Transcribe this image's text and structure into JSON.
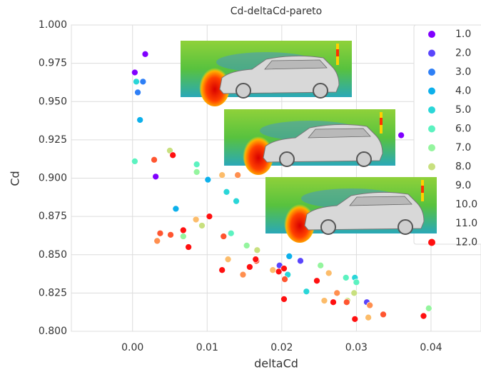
{
  "chart_data": {
    "type": "scatter",
    "title": "Cd-deltaCd-pareto",
    "x_label": "deltaCd",
    "y_label": "Cd",
    "xlim": [
      -0.0082,
      0.0467
    ],
    "ylim": [
      0.8,
      1.0
    ],
    "xticks": [
      {
        "value": 0,
        "label": "0.00"
      },
      {
        "value": 0.01,
        "label": "0.01"
      },
      {
        "value": 0.02,
        "label": "0.02"
      },
      {
        "value": 0.03,
        "label": "0.03"
      },
      {
        "value": 0.04,
        "label": "0.04"
      }
    ],
    "yticks": [
      {
        "value": 0.8,
        "label": "0.800"
      },
      {
        "value": 0.825,
        "label": "0.825"
      },
      {
        "value": 0.85,
        "label": "0.850"
      },
      {
        "value": 0.875,
        "label": "0.875"
      },
      {
        "value": 0.9,
        "label": "0.900"
      },
      {
        "value": 0.925,
        "label": "0.925"
      },
      {
        "value": 0.95,
        "label": "0.950"
      },
      {
        "value": 0.975,
        "label": "0.975"
      },
      {
        "value": 1.0,
        "label": "1.000"
      }
    ],
    "grid": true,
    "legend": "upper right",
    "series": [
      {
        "name": "1.0",
        "color": "#8000ff",
        "x": [
          0.0017,
          0.0003,
          0.0031,
          0.036
        ],
        "values": [
          0.981,
          0.969,
          0.901,
          0.928
        ]
      },
      {
        "name": "2.0",
        "color": "#5a45fc",
        "x": [
          0.0197,
          0.0225,
          0.0314
        ],
        "values": [
          0.843,
          0.846,
          0.819
        ]
      },
      {
        "name": "3.0",
        "color": "#2e7ff6",
        "x": [
          0.0007,
          0.0014
        ],
        "values": [
          0.956,
          0.963
        ]
      },
      {
        "name": "4.0",
        "color": "#0db0eb",
        "x": [
          0.001,
          0.0101,
          0.0058,
          0.021
        ],
        "values": [
          0.938,
          0.899,
          0.88,
          0.849
        ]
      },
      {
        "name": "5.0",
        "color": "#2ad6d8",
        "x": [
          0.0005,
          0.0126,
          0.0139,
          0.0208,
          0.0233,
          0.0298
        ],
        "values": [
          0.963,
          0.891,
          0.885,
          0.837,
          0.826,
          0.835
        ]
      },
      {
        "name": "6.0",
        "color": "#5cf2c0",
        "x": [
          0.0003,
          0.0086,
          0.0132,
          0.03,
          0.0286
        ],
        "values": [
          0.911,
          0.909,
          0.864,
          0.832,
          0.835
        ]
      },
      {
        "name": "7.0",
        "color": "#94f59e",
        "x": [
          0.0086,
          0.0068,
          0.0153,
          0.0252,
          0.0397
        ],
        "values": [
          0.904,
          0.862,
          0.856,
          0.843,
          0.815
        ]
      },
      {
        "name": "8.0",
        "color": "#c8e07f",
        "x": [
          0.005,
          0.0093,
          0.0167,
          0.0297,
          0.0288
        ],
        "values": [
          0.918,
          0.869,
          0.853,
          0.825,
          0.82
        ]
      },
      {
        "name": "9.0",
        "color": "#fcbc6a",
        "x": [
          0.012,
          0.0085,
          0.0128,
          0.0188,
          0.0263,
          0.0257,
          0.0316
        ],
        "values": [
          0.902,
          0.873,
          0.847,
          0.84,
          0.838,
          0.82,
          0.809
        ]
      },
      {
        "name": "10.0",
        "color": "#ff8f4f",
        "x": [
          0.0033,
          0.0141,
          0.0148,
          0.0274,
          0.0318
        ],
        "values": [
          0.859,
          0.902,
          0.837,
          0.825,
          0.817
        ]
      },
      {
        "name": "11.0",
        "color": "#ff5530",
        "x": [
          0.0037,
          0.0051,
          0.0029,
          0.0122,
          0.0166,
          0.0204,
          0.0287,
          0.0336
        ],
        "values": [
          0.864,
          0.863,
          0.912,
          0.862,
          0.846,
          0.834,
          0.819,
          0.811
        ]
      },
      {
        "name": "12.0",
        "color": "#ff1010",
        "x": [
          0.0054,
          0.0068,
          0.0075,
          0.0103,
          0.012,
          0.0157,
          0.0165,
          0.0196,
          0.0203,
          0.0247,
          0.0269,
          0.0298,
          0.039,
          0.0203
        ],
        "values": [
          0.915,
          0.866,
          0.855,
          0.875,
          0.84,
          0.842,
          0.847,
          0.839,
          0.821,
          0.833,
          0.819,
          0.808,
          0.81,
          0.841
        ]
      }
    ]
  }
}
